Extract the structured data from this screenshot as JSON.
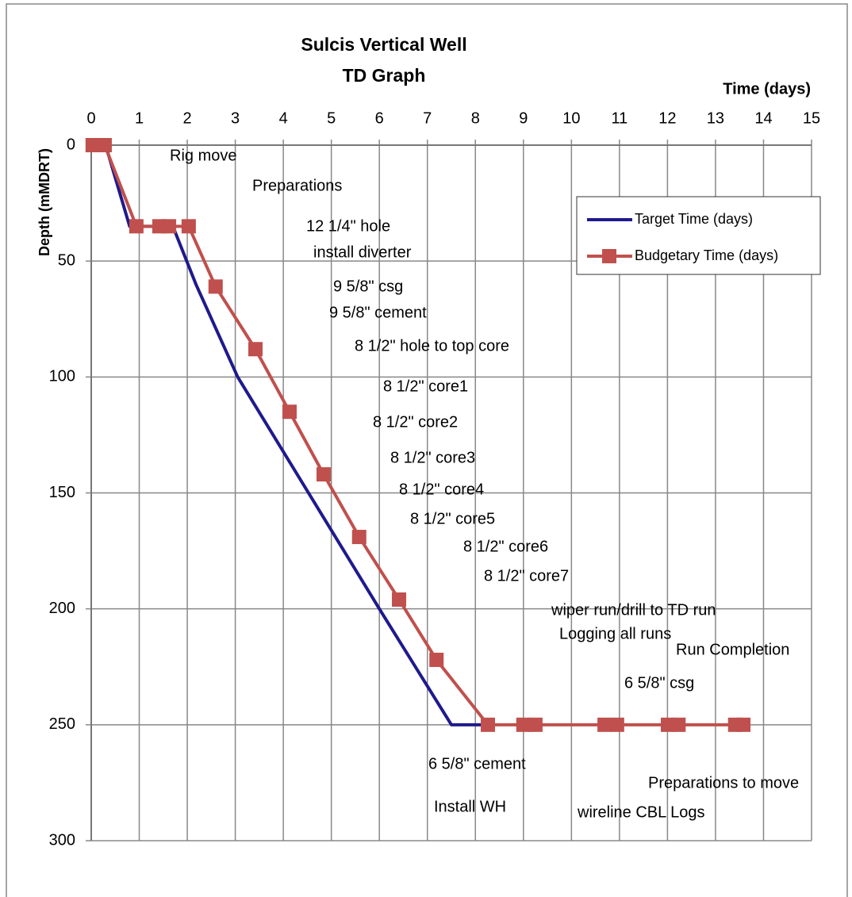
{
  "chart_data": {
    "type": "line",
    "title": "Sulcis Vertical Well",
    "subtitle": "TD Graph",
    "x_label": "Time (days)",
    "y_label": "Depth (mMDRT)",
    "xlim": [
      0,
      15
    ],
    "xticks": [
      0,
      1,
      2,
      3,
      4,
      5,
      6,
      7,
      8,
      9,
      10,
      11,
      12,
      13,
      14,
      15
    ],
    "ylim": [
      0,
      300
    ],
    "yticks": [
      0,
      50,
      100,
      150,
      200,
      250,
      300
    ],
    "y_inverted": true,
    "grid": true,
    "legend": "upper right",
    "series": [
      {
        "name": "Target Time (days)",
        "color": "#1f1a8c",
        "marker": "none",
        "x": [
          0,
          0.3,
          0.8,
          1.7,
          2.18,
          3.05,
          6.0,
          7.5,
          8.2
        ],
        "values": [
          0,
          0,
          35,
          35,
          60,
          100,
          200,
          250,
          250
        ]
      },
      {
        "name": "Budgetary Time (days)",
        "color": "#c0504d",
        "marker": "square",
        "x": [
          0.03,
          0.28,
          0.94,
          1.42,
          1.62,
          2.03,
          2.59,
          3.42,
          4.13,
          4.84,
          5.58,
          6.41,
          7.19,
          8.26,
          9.0,
          9.25,
          10.69,
          10.95,
          12.01,
          12.23,
          13.41,
          13.58
        ],
        "values": [
          0,
          0,
          35,
          35,
          35,
          35,
          61,
          88,
          115,
          142,
          169,
          196,
          222,
          250,
          250,
          250,
          250,
          250,
          250,
          250,
          250,
          250
        ]
      }
    ],
    "annotations": [
      "Rig move",
      "Preparations",
      "12 1/4\" hole",
      "install diverter",
      "9 5/8\" csg",
      "9 5/8\" cement",
      "8 1/2\" hole to top core",
      "8 1/2\" core1",
      "8 1/2\" core2",
      "8 1/2\" core3",
      "8 1/2\" core4",
      "8 1/2\" core5",
      "8 1/2\" core6",
      "8 1/2\" core7",
      "wiper run/drill to TD run",
      "Logging all runs",
      "Run Completion",
      "6 5/8\" csg",
      "6 5/8\" cement",
      "Preparations to move",
      "Install WH",
      "wireline CBL Logs"
    ]
  }
}
